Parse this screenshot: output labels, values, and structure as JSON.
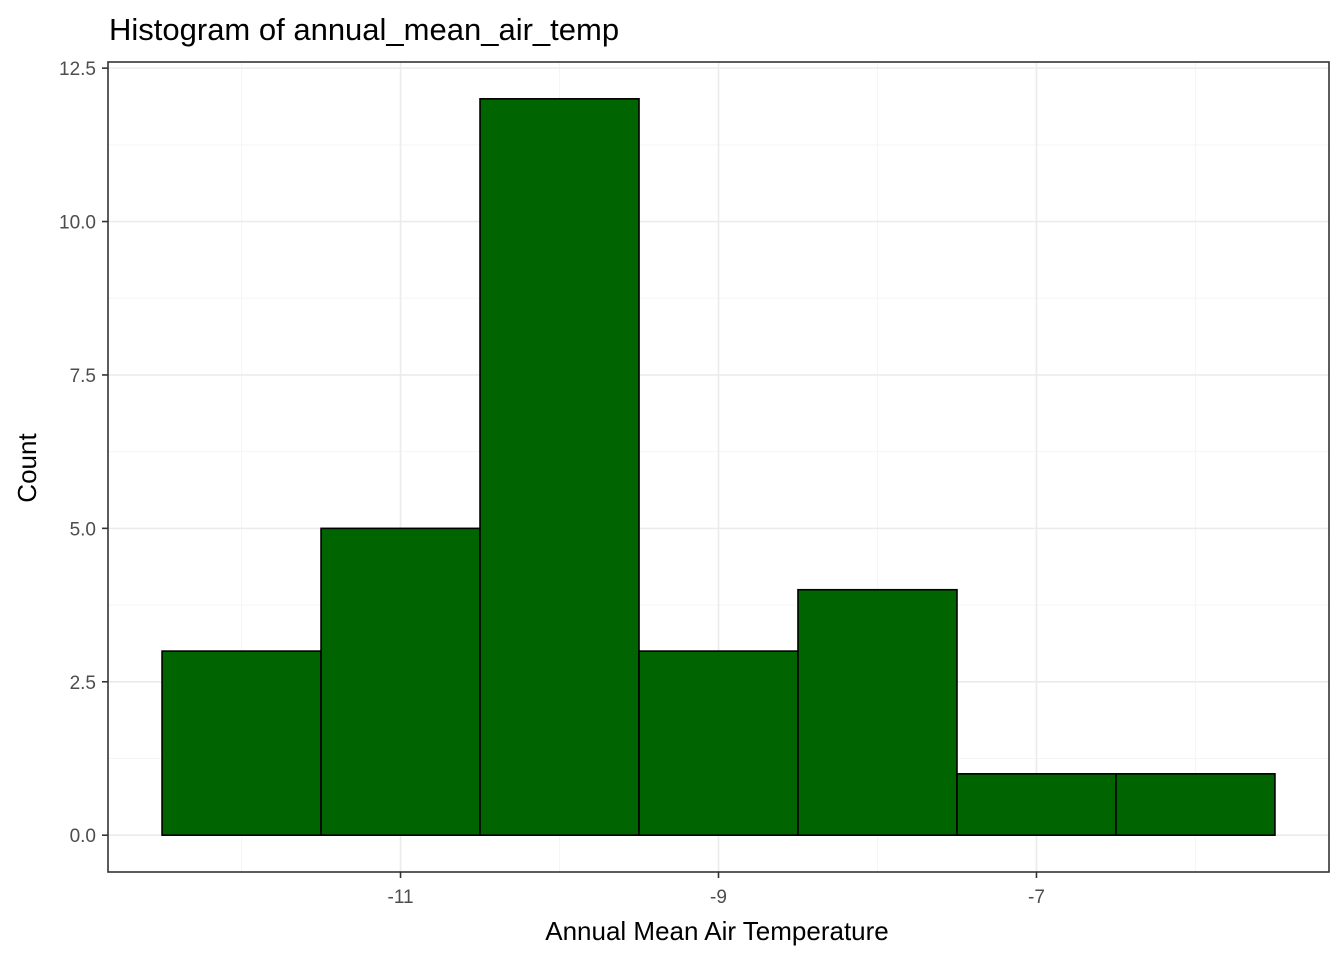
{
  "chart_data": {
    "type": "bar",
    "title": "Histogram of annual_mean_air_temp",
    "xlabel": "Annual Mean Air Temperature",
    "ylabel": "Count",
    "bin_width": 1,
    "bins": [
      {
        "x_start": -12.5,
        "x_end": -11.5,
        "count": 3
      },
      {
        "x_start": -11.5,
        "x_end": -10.5,
        "count": 5
      },
      {
        "x_start": -10.5,
        "x_end": -9.5,
        "count": 12
      },
      {
        "x_start": -9.5,
        "x_end": -8.5,
        "count": 3
      },
      {
        "x_start": -8.5,
        "x_end": -7.5,
        "count": 4
      },
      {
        "x_start": -7.5,
        "x_end": -6.5,
        "count": 1
      },
      {
        "x_start": -6.5,
        "x_end": -5.5,
        "count": 1
      }
    ],
    "xlim": [
      -12.84,
      -5.16
    ],
    "ylim": [
      -0.6,
      12.6
    ],
    "x_ticks": [
      -11,
      -9,
      -7
    ],
    "x_tick_labels": [
      "-11",
      "-9",
      "-7"
    ],
    "y_ticks": [
      0,
      2.5,
      5,
      7.5,
      10,
      12.5
    ],
    "y_tick_labels": [
      "0.0",
      "2.5",
      "5.0",
      "7.5",
      "10.0",
      "12.5"
    ],
    "grid": true,
    "legend": "none",
    "colors": {
      "bar_fill": "#006400",
      "bar_stroke": "#000000",
      "grid_major": "#ebebeb",
      "grid_minor": "#f5f5f5",
      "panel_border": "#333333",
      "tick_text": "#4d4d4d"
    }
  }
}
